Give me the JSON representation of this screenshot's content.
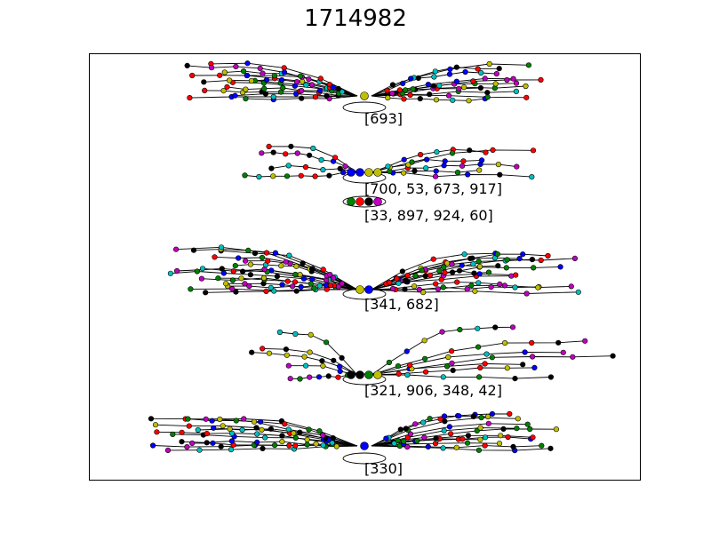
{
  "figure": {
    "title": "1714982",
    "colors": {
      "node_palette": [
        "#0000ff",
        "#008000",
        "#ff0000",
        "#00bfbf",
        "#bf00bf",
        "#bfbf00",
        "#000000"
      ],
      "edge": "#000000",
      "frame": "#000000",
      "background": "#ffffff"
    }
  },
  "clusters": [
    {
      "label": "[693]",
      "left_branches": 13,
      "right_branches": 11,
      "hub_nodes": 1
    },
    {
      "label": "[700, 53, 673, 917]",
      "left_branches": 4,
      "right_branches": 6,
      "hub_nodes": 4
    },
    {
      "label": "[33, 897, 924, 60]",
      "left_branches": 0,
      "right_branches": 0,
      "hub_nodes": 4
    },
    {
      "label": "[341, 682]",
      "left_branches": 16,
      "right_branches": 14,
      "hub_nodes": 2
    },
    {
      "label": "[321, 906, 348, 42]",
      "left_branches": 5,
      "right_branches": 7,
      "hub_nodes": 4
    },
    {
      "label": "[330]",
      "left_branches": 12,
      "right_branches": 12,
      "hub_nodes": 1
    }
  ]
}
